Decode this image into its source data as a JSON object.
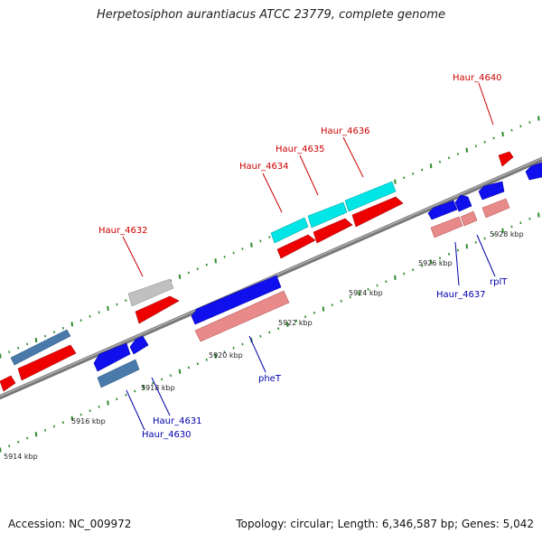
{
  "title": "Herpetosiphon aurantiacus ATCC 23779, complete genome",
  "footer": {
    "accession": "Accession: NC_009972",
    "stats": "Topology: circular; Length: 6,346,587 bp; Genes: 5,042"
  },
  "colors": {
    "backbone": "#777777",
    "tick": "#2e8b2e",
    "label_red": "#cc0000",
    "label_blue": "#0000aa",
    "gene_red": "#ee0000",
    "gene_blue": "#1010ee",
    "gene_pink": "#e88a8a",
    "gene_steel": "#4a7aaa",
    "gene_cyan": "#00e5e5",
    "gene_grey": "#c0c0c0"
  },
  "scale_labels": [
    "5914 kbp",
    "5916 kbp",
    "5918 kbp",
    "5920 kbp",
    "5922 kbp",
    "5924 kbp",
    "5926 kbp",
    "5928 kbp"
  ],
  "gene_labels": [
    {
      "text": "Haur_4640",
      "color": "red"
    },
    {
      "text": "Haur_4636",
      "color": "red"
    },
    {
      "text": "Haur_4635",
      "color": "red"
    },
    {
      "text": "Haur_4634",
      "color": "red"
    },
    {
      "text": "Haur_4632",
      "color": "red"
    },
    {
      "text": "Haur_4637",
      "color": "blue"
    },
    {
      "text": "rplT",
      "color": "blue"
    },
    {
      "text": "pheT",
      "color": "blue"
    },
    {
      "text": "Haur_4631",
      "color": "blue"
    },
    {
      "text": "Haur_4630",
      "color": "blue"
    }
  ]
}
